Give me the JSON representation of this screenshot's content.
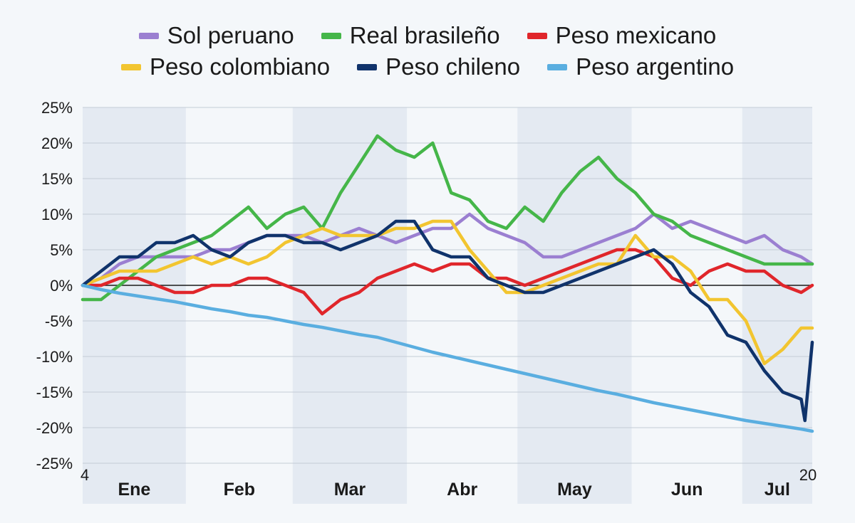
{
  "chart_data": {
    "type": "line",
    "title": "",
    "xlabel": "",
    "ylabel": "",
    "ylim": [
      -25,
      25
    ],
    "yticks": [
      25,
      20,
      15,
      10,
      5,
      0,
      -5,
      -10,
      -15,
      -20,
      -25
    ],
    "ytick_labels": [
      "25%",
      "20%",
      "15%",
      "10%",
      "5%",
      "0%",
      "-5%",
      "-10%",
      "-15%",
      "-20%",
      "-25%"
    ],
    "x_unit": "day of year",
    "xlim": [
      4,
      202
    ],
    "x_edge_labels": [
      "4",
      "20"
    ],
    "months": [
      {
        "label": "Ene",
        "start": 4,
        "end": 31,
        "shaded": true
      },
      {
        "label": "Feb",
        "start": 32,
        "end": 60,
        "shaded": false
      },
      {
        "label": "Mar",
        "start": 61,
        "end": 91,
        "shaded": true
      },
      {
        "label": "Abr",
        "start": 92,
        "end": 121,
        "shaded": false
      },
      {
        "label": "May",
        "start": 122,
        "end": 152,
        "shaded": true
      },
      {
        "label": "Jun",
        "start": 153,
        "end": 182,
        "shaded": false
      },
      {
        "label": "Jul",
        "start": 183,
        "end": 202,
        "shaded": true
      }
    ],
    "legend_position": "top",
    "series": [
      {
        "name": "Sol peruano",
        "color": "#9b7fd1",
        "x": [
          4,
          9,
          14,
          19,
          24,
          29,
          34,
          39,
          44,
          49,
          54,
          59,
          64,
          69,
          74,
          79,
          84,
          89,
          94,
          99,
          104,
          109,
          114,
          119,
          124,
          129,
          134,
          139,
          144,
          149,
          154,
          159,
          164,
          169,
          174,
          179,
          184,
          189,
          194,
          199,
          202
        ],
        "y": [
          0,
          1,
          3,
          4,
          4,
          4,
          4,
          5,
          5,
          6,
          7,
          7,
          7,
          6,
          7,
          8,
          7,
          6,
          7,
          8,
          8,
          10,
          8,
          7,
          6,
          4,
          4,
          5,
          6,
          7,
          8,
          10,
          8,
          9,
          8,
          7,
          6,
          7,
          5,
          4,
          3
        ]
      },
      {
        "name": "Real brasileño",
        "color": "#45b649",
        "x": [
          4,
          9,
          14,
          19,
          24,
          29,
          34,
          39,
          44,
          49,
          54,
          59,
          64,
          69,
          74,
          79,
          84,
          89,
          94,
          99,
          104,
          109,
          114,
          119,
          124,
          129,
          134,
          139,
          144,
          149,
          154,
          159,
          164,
          169,
          174,
          179,
          184,
          189,
          194,
          199,
          202
        ],
        "y": [
          -2,
          -2,
          0,
          2,
          4,
          5,
          6,
          7,
          9,
          11,
          8,
          10,
          11,
          8,
          13,
          17,
          21,
          19,
          18,
          20,
          13,
          12,
          9,
          8,
          11,
          9,
          13,
          16,
          18,
          15,
          13,
          10,
          9,
          7,
          6,
          5,
          4,
          3,
          3,
          3,
          3
        ]
      },
      {
        "name": "Peso mexicano",
        "color": "#e0262b",
        "x": [
          4,
          9,
          14,
          19,
          24,
          29,
          34,
          39,
          44,
          49,
          54,
          59,
          64,
          69,
          74,
          79,
          84,
          89,
          94,
          99,
          104,
          109,
          114,
          119,
          124,
          129,
          134,
          139,
          144,
          149,
          154,
          159,
          164,
          169,
          174,
          179,
          184,
          189,
          194,
          199,
          202
        ],
        "y": [
          0,
          0,
          1,
          1,
          0,
          -1,
          -1,
          0,
          0,
          1,
          1,
          0,
          -1,
          -4,
          -2,
          -1,
          1,
          2,
          3,
          2,
          3,
          3,
          1,
          1,
          0,
          1,
          2,
          3,
          4,
          5,
          5,
          4,
          1,
          0,
          2,
          3,
          2,
          2,
          0,
          -1,
          0
        ]
      },
      {
        "name": "Peso colombiano",
        "color": "#f2c530",
        "x": [
          4,
          9,
          14,
          19,
          24,
          29,
          34,
          39,
          44,
          49,
          54,
          59,
          64,
          69,
          74,
          79,
          84,
          89,
          94,
          99,
          104,
          109,
          114,
          119,
          124,
          129,
          134,
          139,
          144,
          149,
          154,
          159,
          164,
          169,
          174,
          179,
          184,
          189,
          194,
          199,
          202
        ],
        "y": [
          0,
          1,
          2,
          2,
          2,
          3,
          4,
          3,
          4,
          3,
          4,
          6,
          7,
          8,
          7,
          7,
          7,
          8,
          8,
          9,
          9,
          5,
          2,
          -1,
          -1,
          0,
          1,
          2,
          3,
          3,
          7,
          4,
          4,
          2,
          -2,
          -2,
          -5,
          -11,
          -9,
          -6,
          -6
        ]
      },
      {
        "name": "Peso chileno",
        "color": "#10336b",
        "x": [
          4,
          9,
          14,
          19,
          24,
          29,
          34,
          39,
          44,
          49,
          54,
          59,
          64,
          69,
          74,
          79,
          84,
          89,
          94,
          99,
          104,
          109,
          114,
          119,
          124,
          129,
          134,
          139,
          144,
          149,
          154,
          159,
          164,
          169,
          174,
          179,
          184,
          189,
          194,
          199,
          200,
          202
        ],
        "y": [
          0,
          2,
          4,
          4,
          6,
          6,
          7,
          5,
          4,
          6,
          7,
          7,
          6,
          6,
          5,
          6,
          7,
          9,
          9,
          5,
          4,
          4,
          1,
          0,
          -1,
          -1,
          0,
          1,
          2,
          3,
          4,
          5,
          3,
          -1,
          -3,
          -7,
          -8,
          -12,
          -15,
          -16,
          -19,
          -8
        ]
      },
      {
        "name": "Peso argentino",
        "color": "#5aaee0",
        "x": [
          4,
          9,
          14,
          19,
          24,
          29,
          34,
          39,
          44,
          49,
          54,
          59,
          64,
          69,
          74,
          79,
          84,
          89,
          94,
          99,
          104,
          109,
          114,
          119,
          124,
          129,
          134,
          139,
          144,
          149,
          154,
          159,
          164,
          169,
          174,
          179,
          184,
          189,
          194,
          199,
          202
        ],
        "y": [
          0,
          -0.6,
          -1.1,
          -1.5,
          -1.9,
          -2.3,
          -2.8,
          -3.3,
          -3.7,
          -4.2,
          -4.5,
          -5.0,
          -5.5,
          -5.9,
          -6.4,
          -6.9,
          -7.3,
          -8.0,
          -8.7,
          -9.4,
          -10.0,
          -10.6,
          -11.2,
          -11.8,
          -12.4,
          -13.0,
          -13.6,
          -14.2,
          -14.8,
          -15.3,
          -15.9,
          -16.5,
          -17.0,
          -17.5,
          -18.0,
          -18.5,
          -19.0,
          -19.4,
          -19.8,
          -20.2,
          -20.5
        ]
      }
    ]
  }
}
